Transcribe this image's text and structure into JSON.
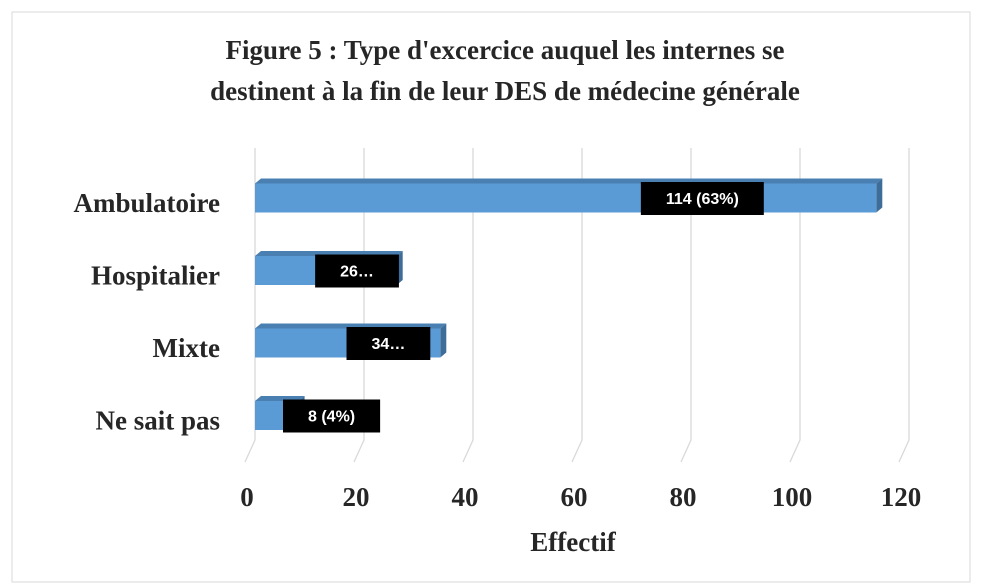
{
  "chart_data": {
    "type": "bar",
    "orientation": "horizontal",
    "title": [
      "Figure 5 : Type d'excercice auquel les internes se",
      "destinent à la fin de leur DES de médecine générale"
    ],
    "categories": [
      "Ambulatoire",
      "Hospitalier",
      "Mixte",
      "Ne sait pas"
    ],
    "values": [
      114,
      26,
      34,
      8
    ],
    "value_labels": [
      "114 (63%)",
      "26…",
      "34…",
      "8 (4%)"
    ],
    "color": "#5b9bd5",
    "xlabel": "Effectif",
    "xlim": [
      0,
      120
    ],
    "xticks": [
      0,
      20,
      40,
      60,
      80,
      100,
      120
    ],
    "grid": true
  }
}
